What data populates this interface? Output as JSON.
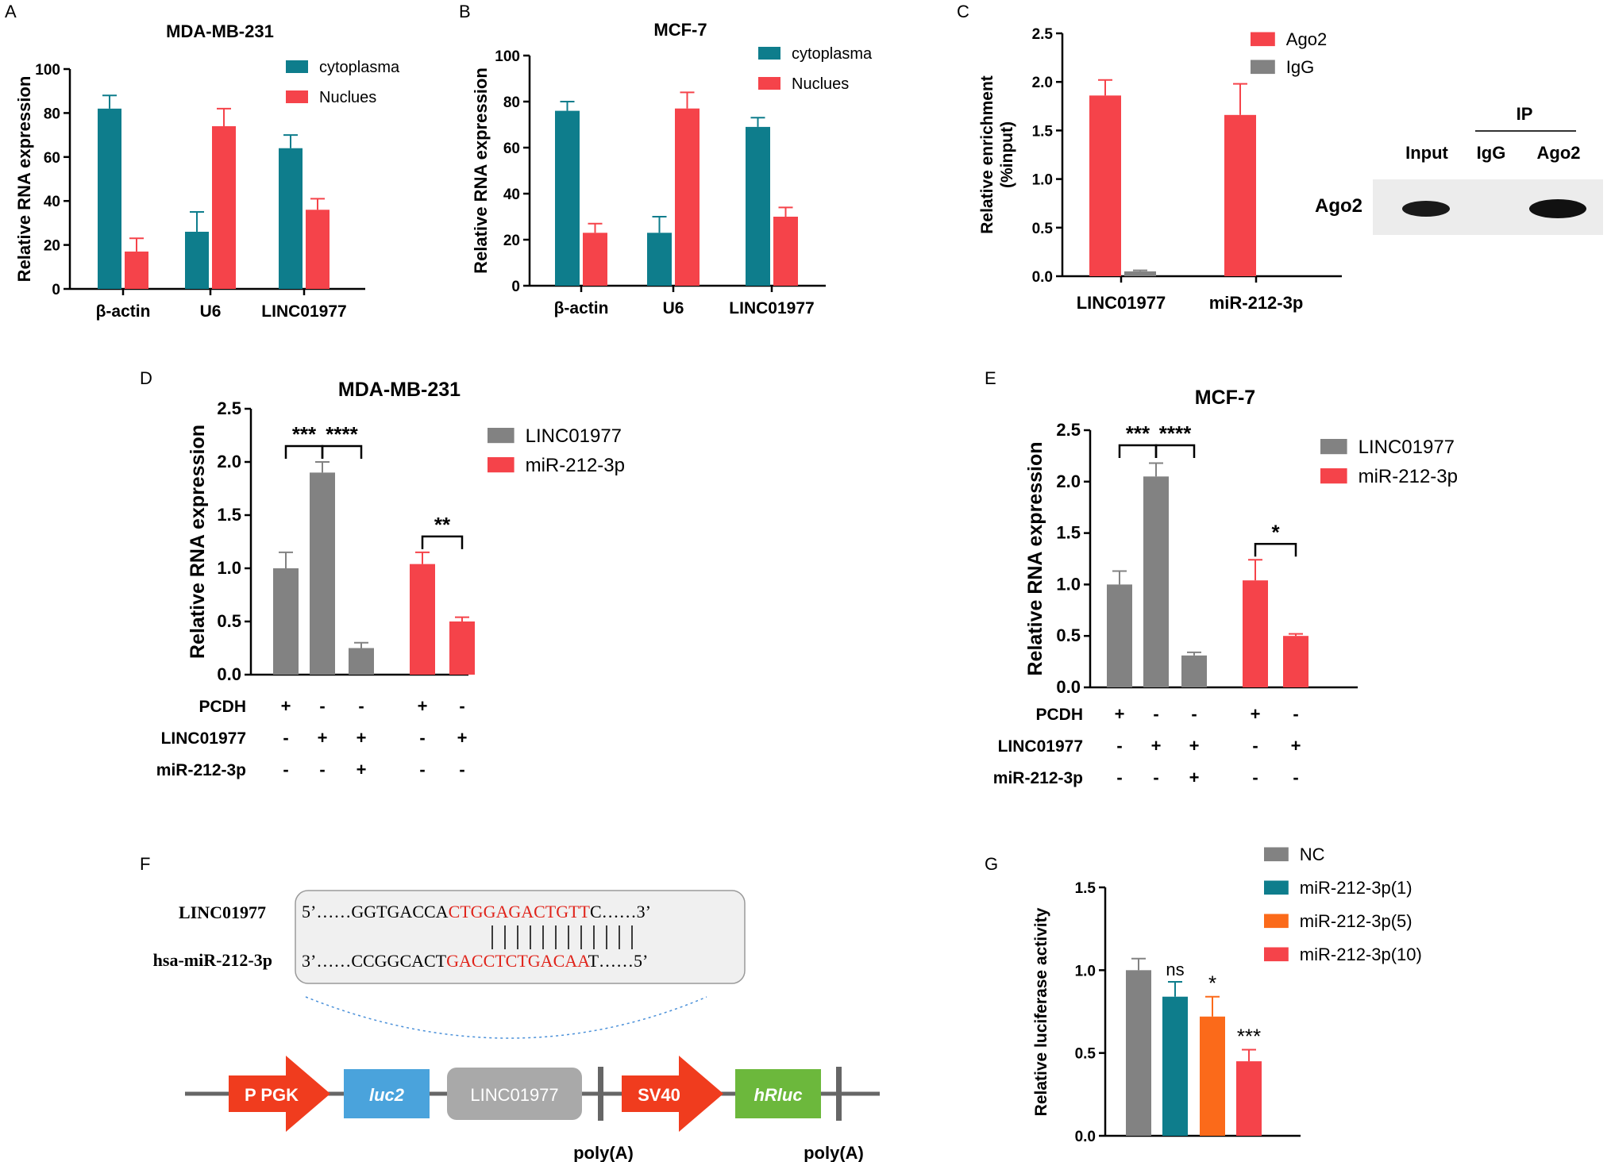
{
  "colors": {
    "teal": "#0e7d8c",
    "red": "#f5434a",
    "gray": "#828282",
    "orange": "#fb6a1a",
    "blue": "#4aa3dc",
    "lightgray": "#a9a9a9",
    "green": "#6cb83c",
    "darkred": "#f03c1e",
    "seqred": "#e0241b"
  },
  "panels": {
    "A": "A",
    "B": "B",
    "C": "C",
    "D": "D",
    "E": "E",
    "F": "F",
    "G": "G"
  },
  "blot": {
    "ip_label": "IP",
    "lanes": [
      "Input",
      "IgG",
      "Ago2"
    ],
    "row_label": "Ago2",
    "band_present": [
      true,
      false,
      true
    ]
  },
  "treatments": {
    "row_labels": [
      "PCDH",
      "LINC01977",
      "miR-212-3p"
    ],
    "rows": [
      [
        "+",
        "-",
        "-",
        "+",
        "-"
      ],
      [
        "-",
        "+",
        "+",
        "-",
        "+"
      ],
      [
        "-",
        "-",
        "+",
        "-",
        "-"
      ]
    ]
  },
  "panel_F": {
    "seq_labels": [
      "LINC01977",
      "hsa-miR-212-3p"
    ],
    "top": {
      "pre": "5’……GGTGACCA",
      "site": "CTGGAGACTGTT",
      "post": "C……3’"
    },
    "bottom": {
      "pre": "3’……CCGGCACT",
      "site": "GACCTCTGACAA",
      "post": "T……5’"
    },
    "pair_count": 12,
    "construct": [
      "P PGK",
      "luc2",
      "LINC01977",
      "SV40",
      "hRluc"
    ],
    "polyA": [
      "poly(A)",
      "poly(A)"
    ]
  },
  "chart_data": [
    {
      "id": "A",
      "type": "bar",
      "title": "MDA-MB-231",
      "categories": [
        "β-actin",
        "U6",
        "LINC01977"
      ],
      "series": [
        {
          "name": "cytoplasma",
          "values": [
            82,
            26,
            64
          ],
          "errors": [
            6,
            9,
            6
          ]
        },
        {
          "name": "Nuclues",
          "values": [
            17,
            74,
            36
          ],
          "errors": [
            6,
            8,
            5
          ]
        }
      ],
      "ylabel": "Relative RNA expression",
      "ylim": [
        0,
        100
      ],
      "yticks": [
        0,
        20,
        40,
        60,
        80,
        100
      ],
      "legend": "top-right"
    },
    {
      "id": "B",
      "type": "bar",
      "title": "MCF-7",
      "categories": [
        "β-actin",
        "U6",
        "LINC01977"
      ],
      "series": [
        {
          "name": "cytoplasma",
          "values": [
            76,
            23,
            69
          ],
          "errors": [
            4,
            7,
            4
          ]
        },
        {
          "name": "Nuclues",
          "values": [
            23,
            77,
            30
          ],
          "errors": [
            4,
            7,
            4
          ]
        }
      ],
      "ylabel": "Relative RNA expression",
      "ylim": [
        0,
        100
      ],
      "yticks": [
        0,
        20,
        40,
        60,
        80,
        100
      ],
      "legend": "top-right"
    },
    {
      "id": "C",
      "type": "bar",
      "title": "",
      "categories": [
        "LINC01977",
        "miR-212-3p"
      ],
      "series": [
        {
          "name": "Ago2",
          "values": [
            1.86,
            1.66
          ],
          "errors": [
            0.16,
            0.32
          ]
        },
        {
          "name": "IgG",
          "values": [
            0.05,
            0.0
          ],
          "errors": [
            0.01,
            0.0
          ]
        }
      ],
      "ylabel": "Relative enrichment (%input)",
      "ylim": [
        0,
        2.5
      ],
      "yticks": [
        "0.0",
        "0.5",
        "1.0",
        "1.5",
        "2.0",
        "2.5"
      ],
      "legend": "top-right"
    },
    {
      "id": "D",
      "type": "bar",
      "title": "MDA-MB-231",
      "series": [
        {
          "name": "LINC01977",
          "values": [
            1.0,
            1.9,
            0.25
          ],
          "errors": [
            0.15,
            0.1,
            0.05
          ]
        },
        {
          "name": "miR-212-3p",
          "values": [
            1.04,
            0.5
          ],
          "errors": [
            0.11,
            0.04
          ]
        }
      ],
      "significance": [
        {
          "bars": [
            0,
            1
          ],
          "label": "***"
        },
        {
          "bars": [
            1,
            2
          ],
          "label": "****"
        },
        {
          "bars": [
            3,
            4
          ],
          "label": "**"
        }
      ],
      "ylabel": "Relative RNA expression",
      "ylim": [
        0,
        2.5
      ],
      "yticks": [
        "0.0",
        "0.5",
        "1.0",
        "1.5",
        "2.0",
        "2.5"
      ],
      "legend": "top-right"
    },
    {
      "id": "E",
      "type": "bar",
      "title": "MCF-7",
      "series": [
        {
          "name": "LINC01977",
          "values": [
            1.0,
            2.05,
            0.31
          ],
          "errors": [
            0.13,
            0.13,
            0.03
          ]
        },
        {
          "name": "miR-212-3p",
          "values": [
            1.04,
            0.5
          ],
          "errors": [
            0.2,
            0.02
          ]
        }
      ],
      "significance": [
        {
          "bars": [
            0,
            1
          ],
          "label": "***"
        },
        {
          "bars": [
            1,
            2
          ],
          "label": "****"
        },
        {
          "bars": [
            3,
            4
          ],
          "label": "*"
        }
      ],
      "ylabel": "Relative RNA expression",
      "ylim": [
        0,
        2.5
      ],
      "yticks": [
        "0.0",
        "0.5",
        "1.0",
        "1.5",
        "2.0",
        "2.5"
      ],
      "legend": "top-right"
    },
    {
      "id": "G",
      "type": "bar",
      "title": "",
      "categories": [
        "NC",
        "miR-212-3p(1)",
        "miR-212-3p(5)",
        "miR-212-3p(10)"
      ],
      "values": [
        1.0,
        0.84,
        0.72,
        0.45
      ],
      "errors": [
        0.07,
        0.09,
        0.12,
        0.07
      ],
      "annotations": [
        "",
        "ns",
        "*",
        "***"
      ],
      "ylabel": "Relative luciferase activity",
      "ylim": [
        0,
        1.5
      ],
      "yticks": [
        "0.0",
        "0.5",
        "1.0",
        "1.5"
      ],
      "legend": "top-right"
    }
  ]
}
